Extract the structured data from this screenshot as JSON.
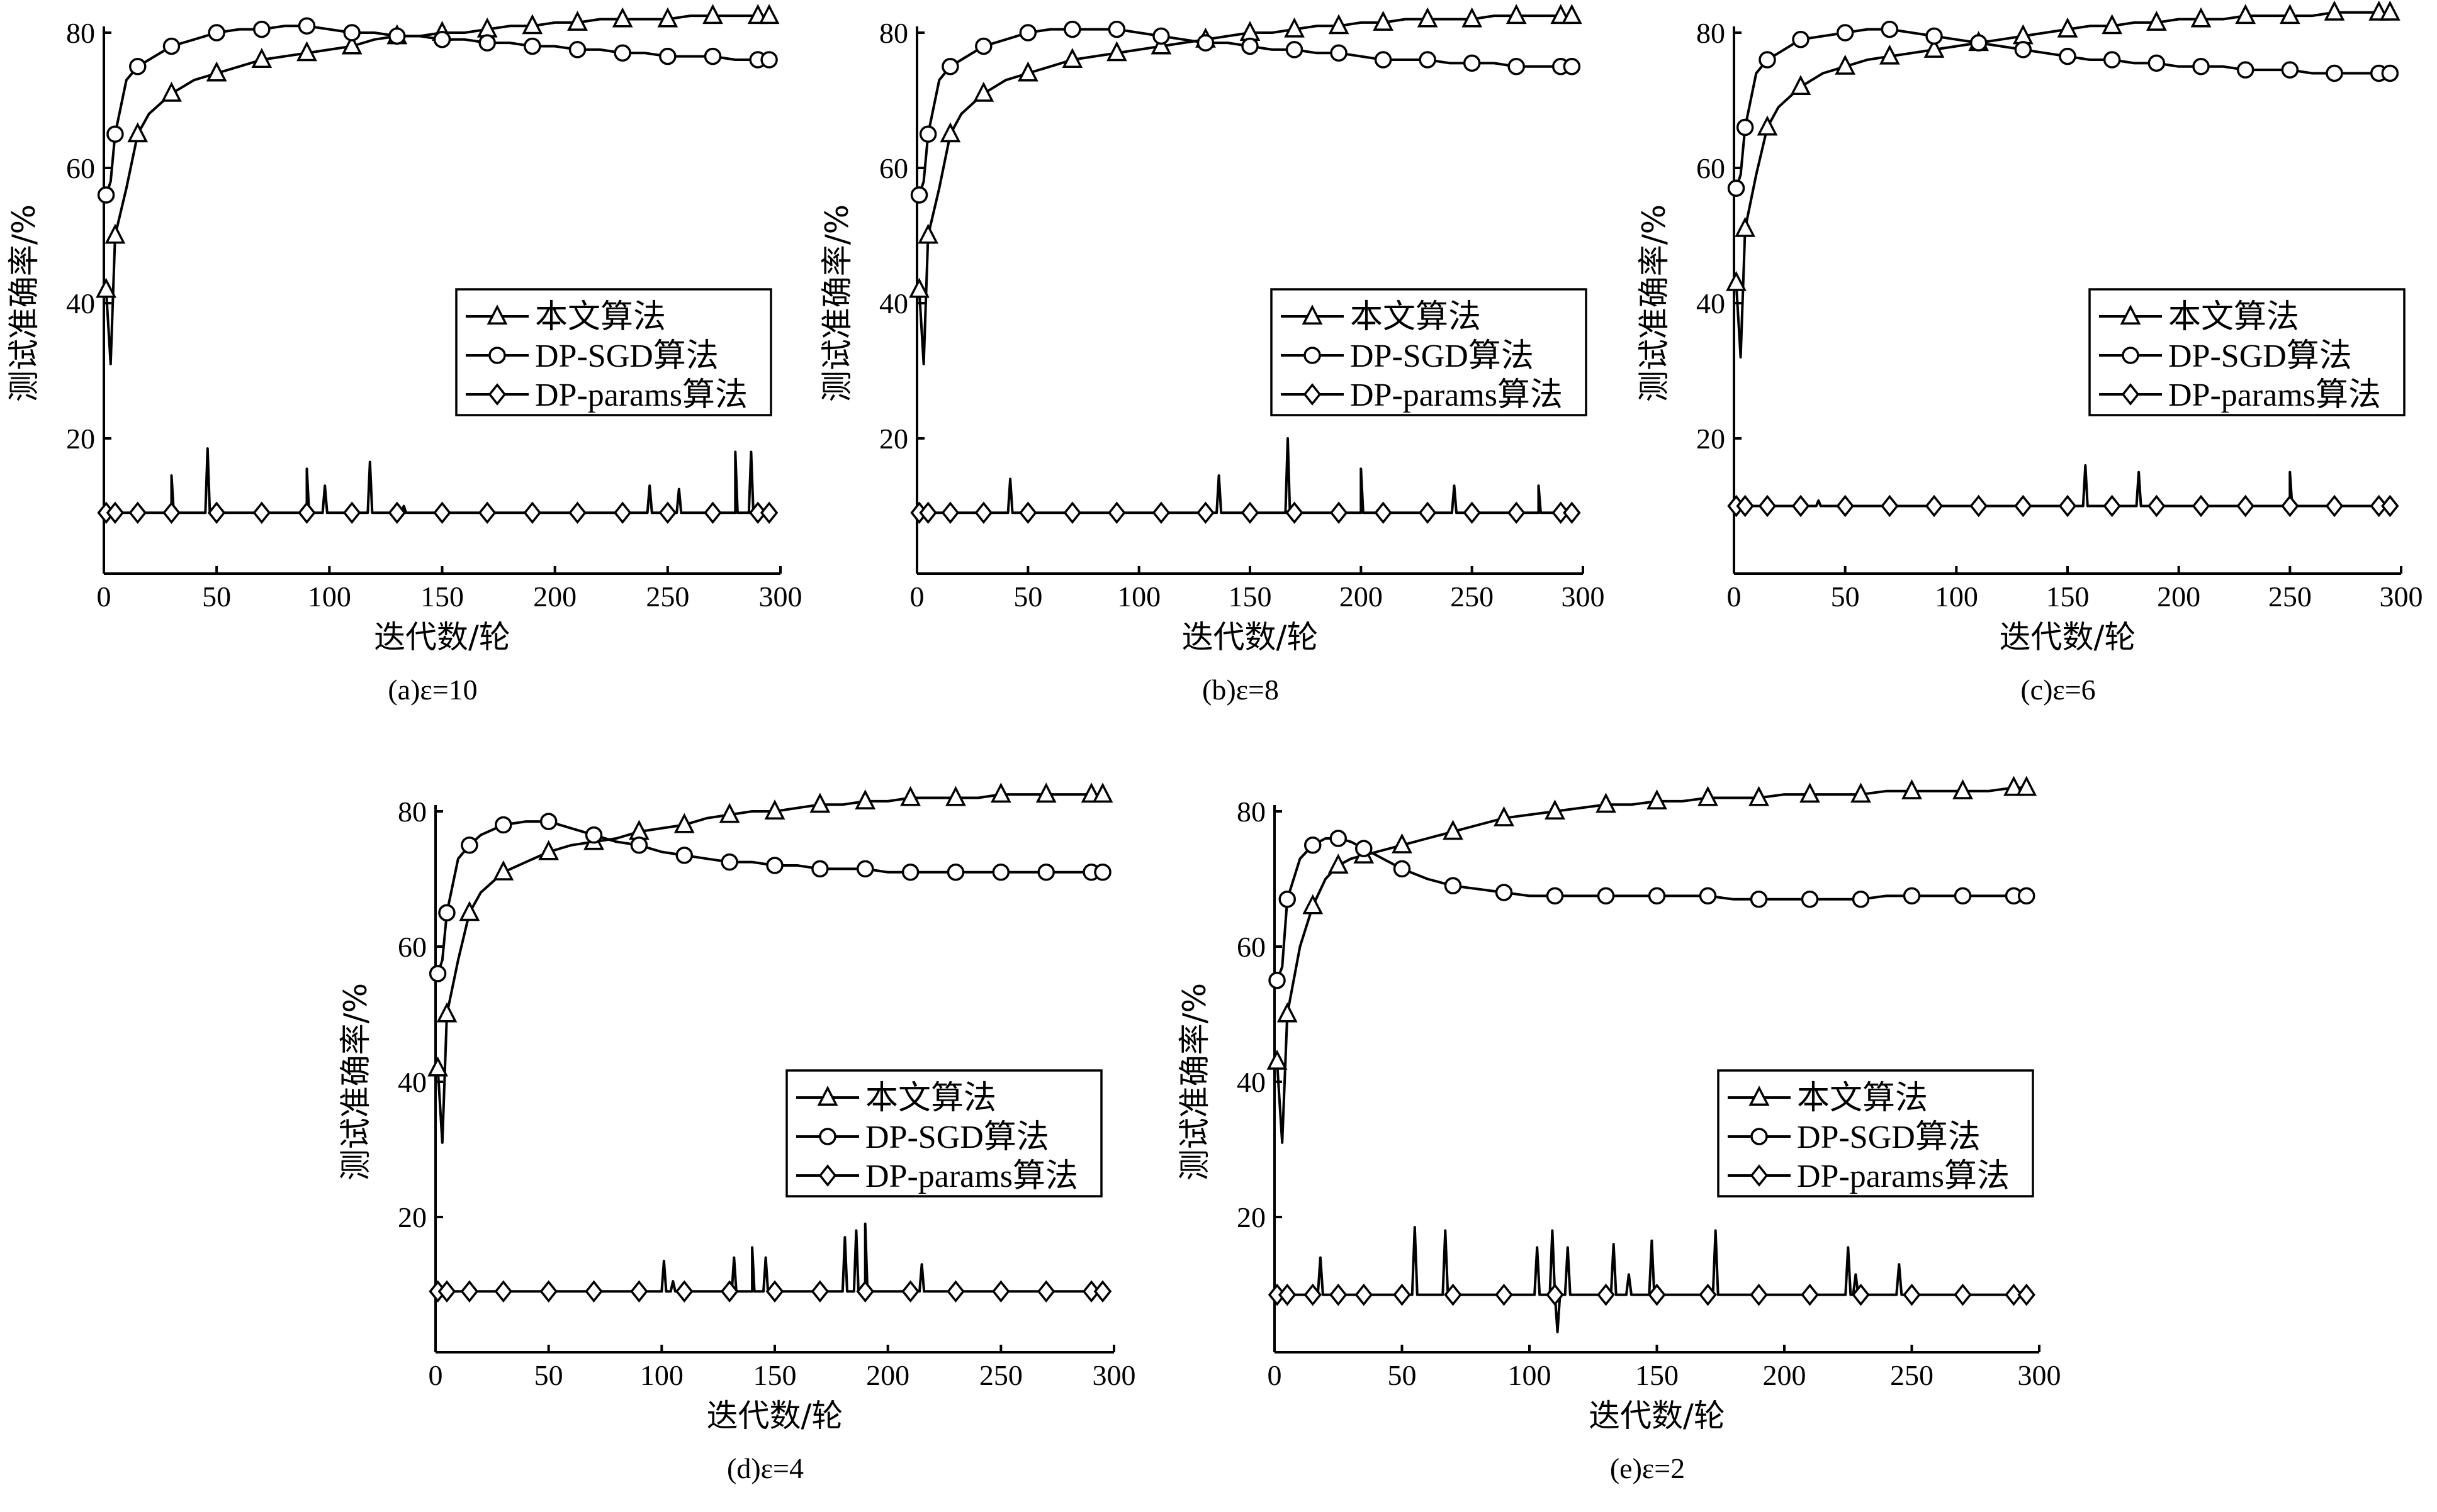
{
  "figure": {
    "ylabel": "测试准确率/%",
    "xlabel": "迭代数/轮",
    "legend": [
      "本文算法",
      "DP-SGD算法",
      "DP-params算法"
    ]
  },
  "chart_data": [
    {
      "type": "line",
      "caption": "(a)ε=10",
      "xlabel": "迭代数/轮",
      "ylabel": "测试准确率/%",
      "xlim": [
        0,
        300
      ],
      "ylim": [
        0,
        80
      ],
      "xticks": [
        0,
        50,
        100,
        150,
        200,
        250,
        300
      ],
      "yticks": [
        20,
        40,
        60,
        80
      ],
      "legend_position": "center-right",
      "x": [
        1,
        3,
        5,
        10,
        15,
        20,
        30,
        40,
        50,
        60,
        70,
        80,
        90,
        100,
        110,
        120,
        130,
        140,
        150,
        160,
        170,
        180,
        190,
        200,
        210,
        220,
        230,
        240,
        250,
        260,
        270,
        280,
        290,
        295
      ],
      "series": [
        {
          "name": "本文算法",
          "marker": "triangle",
          "values": [
            42,
            31,
            50,
            57,
            65,
            68,
            71,
            73,
            74,
            75,
            76,
            76.5,
            77,
            77.5,
            78,
            79,
            79.5,
            79.5,
            80,
            80,
            80.5,
            81,
            81,
            81.5,
            81.5,
            82,
            82,
            82,
            82,
            82.5,
            82.5,
            82.5,
            82.5,
            82.5
          ]
        },
        {
          "name": "DP-SGD算法",
          "marker": "circle-open",
          "values": [
            56,
            58,
            65,
            73,
            75,
            76,
            78,
            79,
            80,
            80.5,
            80.5,
            81,
            81,
            80.5,
            80,
            80,
            79.5,
            79.5,
            79,
            79,
            78.5,
            78.5,
            78,
            78,
            77.5,
            77.5,
            77,
            77,
            76.5,
            76.5,
            76.5,
            76,
            76,
            76
          ]
        },
        {
          "name": "DP-params算法",
          "marker": "diamond",
          "base": 9,
          "values": [
            9,
            9,
            9,
            9,
            9,
            9,
            9,
            9,
            9,
            9,
            9,
            9,
            9,
            9,
            9,
            9,
            9,
            9,
            9,
            9,
            9,
            9,
            9,
            9,
            9,
            9,
            9,
            9,
            9,
            9,
            9,
            9,
            9,
            9
          ],
          "spikes": [
            [
              30,
              14.5
            ],
            [
              46,
              18.5
            ],
            [
              90,
              15.5
            ],
            [
              98,
              13
            ],
            [
              118,
              16.5
            ],
            [
              133,
              10
            ],
            [
              242,
              13
            ],
            [
              255,
              12.5
            ],
            [
              280,
              18
            ],
            [
              287,
              18
            ]
          ]
        }
      ]
    },
    {
      "type": "line",
      "caption": "(b)ε=8",
      "xlabel": "迭代数/轮",
      "ylabel": "测试准确率/%",
      "xlim": [
        0,
        300
      ],
      "ylim": [
        0,
        80
      ],
      "xticks": [
        0,
        50,
        100,
        150,
        200,
        250,
        300
      ],
      "yticks": [
        20,
        40,
        60,
        80
      ],
      "legend_position": "center-right",
      "x": [
        1,
        3,
        5,
        10,
        15,
        20,
        30,
        40,
        50,
        60,
        70,
        80,
        90,
        100,
        110,
        120,
        130,
        140,
        150,
        160,
        170,
        180,
        190,
        200,
        210,
        220,
        230,
        240,
        250,
        260,
        270,
        280,
        290,
        295
      ],
      "series": [
        {
          "name": "本文算法",
          "marker": "triangle",
          "values": [
            42,
            31,
            50,
            57,
            65,
            68,
            71,
            73,
            74,
            75,
            76,
            76.5,
            77,
            77.5,
            78,
            78.5,
            79,
            79.5,
            80,
            80,
            80.5,
            81,
            81,
            81.5,
            81.5,
            82,
            82,
            82,
            82,
            82.5,
            82.5,
            82.5,
            82.5,
            82.5
          ]
        },
        {
          "name": "DP-SGD算法",
          "marker": "circle-open",
          "values": [
            56,
            58,
            65,
            73,
            75,
            76,
            78,
            79,
            80,
            80.5,
            80.5,
            80.5,
            80.5,
            80,
            79.5,
            79,
            78.5,
            78.5,
            78,
            77.5,
            77.5,
            77,
            77,
            76.5,
            76,
            76,
            76,
            75.5,
            75.5,
            75.5,
            75,
            75,
            75,
            75
          ]
        },
        {
          "name": "DP-params算法",
          "marker": "diamond",
          "base": 9,
          "values": [
            9,
            9,
            9,
            9,
            9,
            9,
            9,
            9,
            9,
            9,
            9,
            9,
            9,
            9,
            9,
            9,
            9,
            9,
            9,
            9,
            9,
            9,
            9,
            9,
            9,
            9,
            9,
            9,
            9,
            9,
            9,
            9,
            9,
            9
          ],
          "spikes": [
            [
              42,
              14
            ],
            [
              136,
              14.5
            ],
            [
              167,
              20
            ],
            [
              200,
              15.5
            ],
            [
              242,
              13
            ],
            [
              280,
              13
            ]
          ]
        }
      ]
    },
    {
      "type": "line",
      "caption": "(c)ε=6",
      "xlabel": "迭代数/轮",
      "ylabel": "测试准确率/%",
      "xlim": [
        0,
        300
      ],
      "ylim": [
        0,
        80
      ],
      "xticks": [
        0,
        50,
        100,
        150,
        200,
        250,
        300
      ],
      "yticks": [
        20,
        40,
        60,
        80
      ],
      "legend_position": "center-right",
      "x": [
        1,
        3,
        5,
        10,
        15,
        20,
        30,
        40,
        50,
        60,
        70,
        80,
        90,
        100,
        110,
        120,
        130,
        140,
        150,
        160,
        170,
        180,
        190,
        200,
        210,
        220,
        230,
        240,
        250,
        260,
        270,
        280,
        290,
        295
      ],
      "series": [
        {
          "name": "本文算法",
          "marker": "triangle",
          "values": [
            43,
            32,
            51,
            59,
            66,
            69,
            72,
            74,
            75,
            76,
            76.5,
            77,
            77.5,
            78,
            78.5,
            79,
            79.5,
            80,
            80.5,
            81,
            81,
            81.5,
            81.5,
            82,
            82,
            82,
            82.5,
            82.5,
            82.5,
            82.5,
            83,
            83,
            83,
            83
          ]
        },
        {
          "name": "DP-SGD算法",
          "marker": "circle-open",
          "values": [
            57,
            59,
            66,
            74,
            76,
            77,
            79,
            79.5,
            80,
            80.5,
            80.5,
            80,
            79.5,
            79,
            78.5,
            78,
            77.5,
            77,
            76.5,
            76,
            76,
            75.5,
            75.5,
            75,
            75,
            75,
            74.5,
            74.5,
            74.5,
            74,
            74,
            74,
            74,
            74
          ]
        },
        {
          "name": "DP-params算法",
          "marker": "diamond",
          "base": 10,
          "values": [
            10,
            10,
            10,
            10,
            10,
            10,
            10,
            10,
            10,
            10,
            10,
            10,
            10,
            10,
            10,
            10,
            10,
            10,
            10,
            10,
            10,
            10,
            10,
            10,
            10,
            10,
            10,
            10,
            10,
            10,
            10,
            10,
            10,
            10
          ],
          "spikes": [
            [
              38,
              10.8
            ],
            [
              158,
              16
            ],
            [
              182,
              15
            ],
            [
              250,
              15
            ]
          ]
        }
      ]
    },
    {
      "type": "line",
      "caption": "(d)ε=4",
      "xlabel": "迭代数/轮",
      "ylabel": "测试准确率/%",
      "xlim": [
        0,
        300
      ],
      "ylim": [
        0,
        80
      ],
      "xticks": [
        0,
        50,
        100,
        150,
        200,
        250,
        300
      ],
      "yticks": [
        20,
        40,
        60,
        80
      ],
      "legend_position": "center-right",
      "x": [
        1,
        3,
        5,
        10,
        15,
        20,
        30,
        40,
        50,
        60,
        70,
        80,
        90,
        100,
        110,
        120,
        130,
        140,
        150,
        160,
        170,
        180,
        190,
        200,
        210,
        220,
        230,
        240,
        250,
        260,
        270,
        280,
        290,
        295
      ],
      "series": [
        {
          "name": "本文算法",
          "marker": "triangle",
          "values": [
            42,
            31,
            50,
            58,
            65,
            68,
            71,
            72.5,
            74,
            75,
            75.5,
            76,
            77,
            77.5,
            78,
            79,
            79.5,
            80,
            80,
            80.5,
            81,
            81,
            81.5,
            81.5,
            82,
            82,
            82,
            82,
            82.5,
            82.5,
            82.5,
            82.5,
            82.5,
            82.5
          ]
        },
        {
          "name": "DP-SGD算法",
          "marker": "circle-open",
          "values": [
            56,
            58,
            65,
            73,
            75,
            76.5,
            78,
            78.5,
            78.5,
            77.5,
            76.5,
            75.5,
            75,
            74,
            73.5,
            73,
            72.5,
            72.5,
            72,
            72,
            71.5,
            71.5,
            71.5,
            71,
            71,
            71,
            71,
            71,
            71,
            71,
            71,
            71,
            71,
            71
          ]
        },
        {
          "name": "DP-params算法",
          "marker": "diamond",
          "base": 9,
          "values": [
            9,
            9,
            9,
            9,
            9,
            9,
            9,
            9,
            9,
            9,
            9,
            9,
            9,
            9,
            9,
            9,
            9,
            9,
            9,
            9,
            9,
            9,
            9,
            9,
            9,
            9,
            9,
            9,
            9,
            9,
            9,
            9,
            9,
            9
          ],
          "spikes": [
            [
              101,
              13.5
            ],
            [
              105,
              10.5
            ],
            [
              132,
              14
            ],
            [
              140,
              15.5
            ],
            [
              146,
              14
            ],
            [
              181,
              17
            ],
            [
              186,
              18
            ],
            [
              190,
              19
            ],
            [
              215,
              13
            ]
          ]
        }
      ]
    },
    {
      "type": "line",
      "caption": "(e)ε=2",
      "xlabel": "迭代数/轮",
      "ylabel": "测试准确率/%",
      "xlim": [
        0,
        300
      ],
      "ylim": [
        0,
        80
      ],
      "xticks": [
        0,
        50,
        100,
        150,
        200,
        250,
        300
      ],
      "yticks": [
        20,
        40,
        60,
        80
      ],
      "legend_position": "center-right",
      "x": [
        1,
        3,
        5,
        10,
        15,
        20,
        25,
        30,
        35,
        40,
        50,
        60,
        70,
        80,
        90,
        100,
        110,
        120,
        130,
        140,
        150,
        160,
        170,
        180,
        190,
        200,
        210,
        220,
        230,
        240,
        250,
        260,
        270,
        280,
        290,
        295
      ],
      "series": [
        {
          "name": "本文算法",
          "marker": "triangle",
          "values": [
            43,
            31,
            50,
            60,
            66,
            70,
            72,
            73,
            73.5,
            74,
            75,
            76,
            77,
            78,
            79,
            79.5,
            80,
            80.5,
            81,
            81,
            81.5,
            81.5,
            82,
            82,
            82,
            82.5,
            82.5,
            82.5,
            82.5,
            83,
            83,
            83,
            83,
            83,
            83.5,
            83.5
          ]
        },
        {
          "name": "DP-SGD算法",
          "marker": "circle-open",
          "values": [
            55,
            57,
            67,
            73,
            75,
            76,
            76,
            75.5,
            74.5,
            73.5,
            71.5,
            70,
            69,
            68.5,
            68,
            67.5,
            67.5,
            67.5,
            67.5,
            67.5,
            67.5,
            67.5,
            67.5,
            67,
            67,
            67,
            67,
            67,
            67,
            67.5,
            67.5,
            67.5,
            67.5,
            67.5,
            67.5,
            67.5
          ]
        },
        {
          "name": "DP-params算法",
          "marker": "diamond",
          "base": 8.5,
          "values": [
            8.5,
            8.5,
            8.5,
            8.5,
            8.5,
            8.5,
            8.5,
            8.5,
            8.5,
            8.5,
            8.5,
            8.5,
            8.5,
            8.5,
            8.5,
            8.5,
            8.5,
            8.5,
            8.5,
            8.5,
            8.5,
            8.5,
            8.5,
            8.5,
            8.5,
            8.5,
            8.5,
            8.5,
            8.5,
            8.5,
            8.5,
            8.5,
            8.5,
            8.5,
            8.5,
            8.5
          ],
          "spikes": [
            [
              18,
              14
            ],
            [
              55,
              18.5
            ],
            [
              67,
              18
            ],
            [
              103,
              15.5
            ],
            [
              109,
              18
            ],
            [
              111,
              3
            ],
            [
              115,
              15.5
            ],
            [
              133,
              16
            ],
            [
              139,
              11.5
            ],
            [
              148,
              16.5
            ],
            [
              173,
              18
            ],
            [
              225,
              15.5
            ],
            [
              228,
              11.5
            ],
            [
              245,
              13
            ]
          ]
        }
      ]
    }
  ]
}
